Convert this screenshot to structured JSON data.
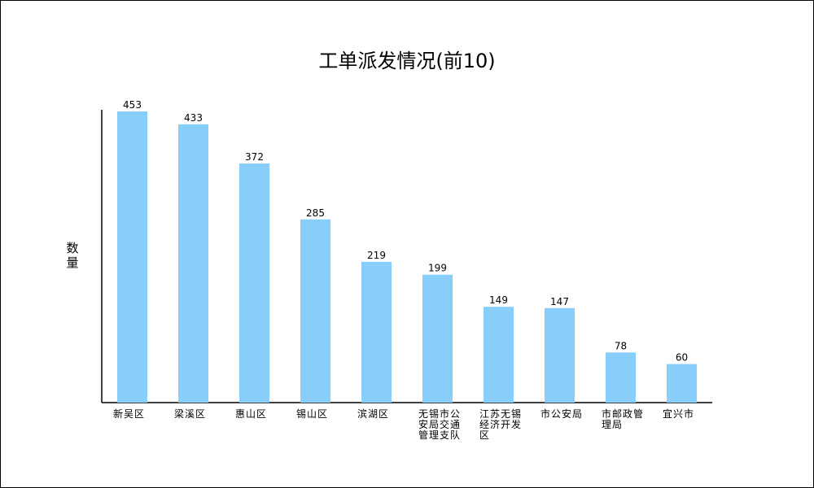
{
  "chart_data": {
    "type": "bar",
    "title": "工单派发情况(前10)",
    "ylabel": "数量",
    "xlabel": "",
    "ylim": [
      0,
      453
    ],
    "grid": false,
    "legend": "none",
    "bar_color": "#87cefa",
    "categories": [
      [
        "新吴区"
      ],
      [
        "梁溪区"
      ],
      [
        "惠山区"
      ],
      [
        "锡山区"
      ],
      [
        "滨湖区"
      ],
      [
        "无锡市公",
        "安局交通",
        "管理支队"
      ],
      [
        "江苏无锡",
        "经济开发",
        "区"
      ],
      [
        "市公安局"
      ],
      [
        "市邮政管",
        "理局"
      ],
      [
        "宜兴市"
      ]
    ],
    "values": [
      453,
      433,
      372,
      285,
      219,
      199,
      149,
      147,
      78,
      60
    ]
  }
}
